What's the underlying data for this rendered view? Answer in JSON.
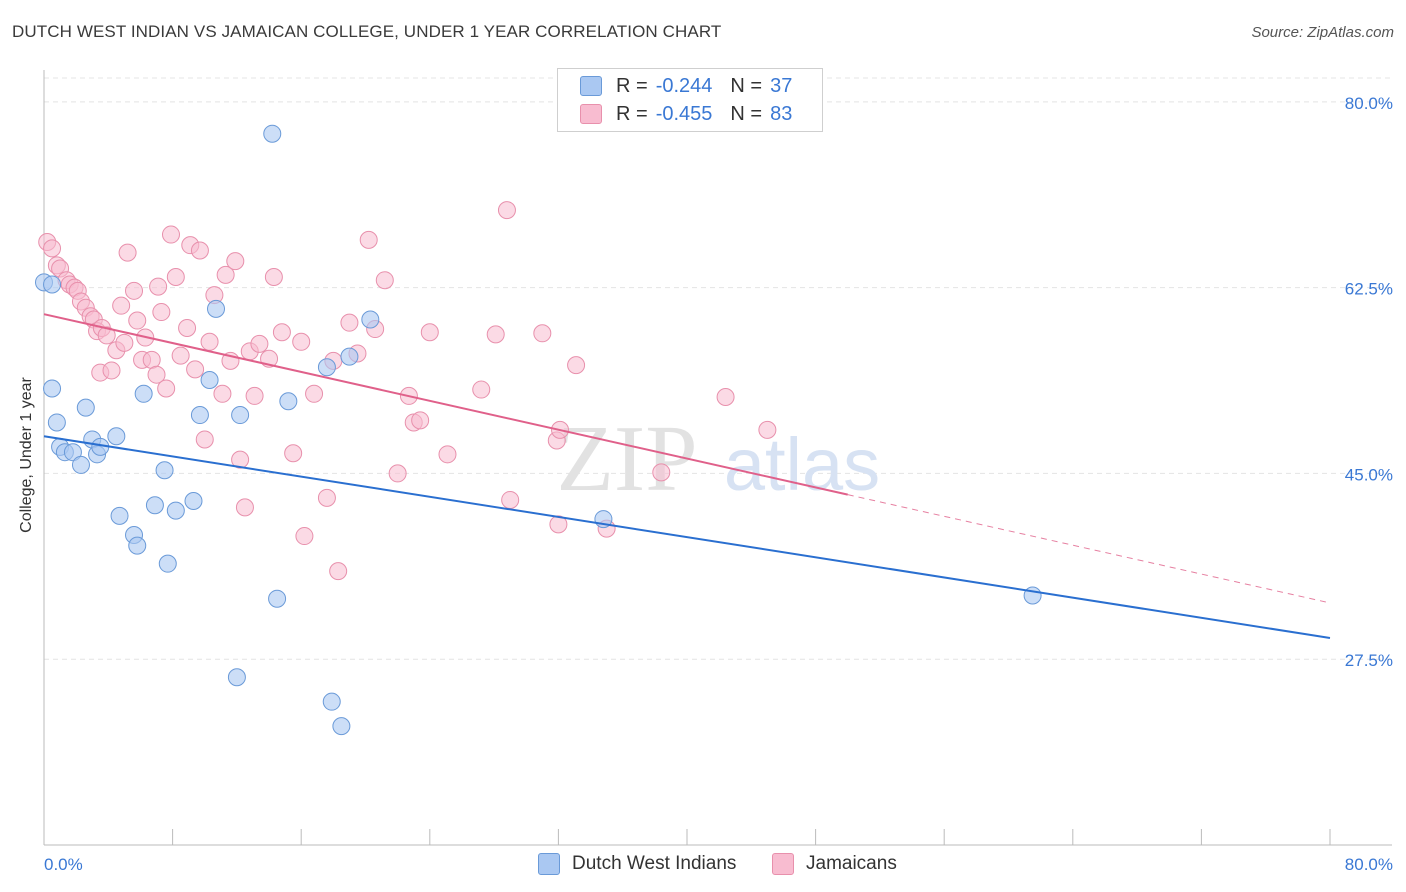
{
  "title": "DUTCH WEST INDIAN VS JAMAICAN COLLEGE, UNDER 1 YEAR CORRELATION CHART",
  "source": "Source: ZipAtlas.com",
  "legend": {
    "r_label": "R =",
    "n_label": "N =",
    "series": [
      {
        "r": "-0.244",
        "n": "37"
      },
      {
        "r": "-0.455",
        "n": "83"
      }
    ]
  },
  "bottom_legend": [
    "Dutch West Indians",
    "Jamaicans"
  ],
  "watermark": {
    "part1": "ZIP",
    "part2": "atlas"
  },
  "colors": {
    "blue_fill": "#aac8f2",
    "blue_stroke": "#6a9ad8",
    "blue_line": "#2a6fd0",
    "pink_fill": "#f8bcd0",
    "pink_stroke": "#e890ac",
    "pink_line": "#e0608a",
    "tick_label": "#3a78d4",
    "grid": "#e4e4e4"
  },
  "chart_data": {
    "type": "scatter",
    "title": "DUTCH WEST INDIAN VS JAMAICAN COLLEGE, UNDER 1 YEAR CORRELATION CHART",
    "xlabel": "",
    "ylabel": "College, Under 1 year",
    "xlim": [
      0,
      80
    ],
    "ylim": [
      10,
      83
    ],
    "x_tick_labels": [
      "0.0%",
      "80.0%"
    ],
    "y_ticks": [
      27.5,
      45.0,
      62.5,
      80.0
    ],
    "y_tick_labels": [
      "27.5%",
      "45.0%",
      "62.5%",
      "80.0%"
    ],
    "grid": true,
    "series": [
      {
        "name": "Dutch West Indians",
        "r": -0.244,
        "n": 37,
        "trend": {
          "x0": 0,
          "y0": 48.5,
          "x1": 80,
          "y1": 29.5,
          "style": "solid"
        },
        "points": [
          [
            0.0,
            63.0
          ],
          [
            0.5,
            53.0
          ],
          [
            0.8,
            49.8
          ],
          [
            1.0,
            47.5
          ],
          [
            1.3,
            47.0
          ],
          [
            1.8,
            47.0
          ],
          [
            2.3,
            45.8
          ],
          [
            2.6,
            51.2
          ],
          [
            3.0,
            48.2
          ],
          [
            3.3,
            46.8
          ],
          [
            3.5,
            47.5
          ],
          [
            4.5,
            48.5
          ],
          [
            4.7,
            41.0
          ],
          [
            5.6,
            39.2
          ],
          [
            5.8,
            38.2
          ],
          [
            6.2,
            52.5
          ],
          [
            6.9,
            42.0
          ],
          [
            7.5,
            45.3
          ],
          [
            7.7,
            36.5
          ],
          [
            8.2,
            41.5
          ],
          [
            9.3,
            42.4
          ],
          [
            9.7,
            50.5
          ],
          [
            10.3,
            53.8
          ],
          [
            10.7,
            60.5
          ],
          [
            12.0,
            25.8
          ],
          [
            12.2,
            50.5
          ],
          [
            14.2,
            77.0
          ],
          [
            14.5,
            33.2
          ],
          [
            15.2,
            51.8
          ],
          [
            17.6,
            55.0
          ],
          [
            17.9,
            23.5
          ],
          [
            18.5,
            21.2
          ],
          [
            19.0,
            56.0
          ],
          [
            20.3,
            59.5
          ],
          [
            34.8,
            40.7
          ],
          [
            61.5,
            33.5
          ],
          [
            0.5,
            62.8
          ]
        ]
      },
      {
        "name": "Jamaicans",
        "r": -0.455,
        "n": 83,
        "trend": {
          "x0": 0,
          "y0": 60.0,
          "x1": 50,
          "y1": 43.0,
          "style": "solid",
          "dash_to": {
            "x": 80,
            "y": 32.8
          }
        },
        "points": [
          [
            0.2,
            66.8
          ],
          [
            0.5,
            66.2
          ],
          [
            0.8,
            64.6
          ],
          [
            1.0,
            64.3
          ],
          [
            1.4,
            63.2
          ],
          [
            1.6,
            62.8
          ],
          [
            1.9,
            62.5
          ],
          [
            2.1,
            62.2
          ],
          [
            2.3,
            61.2
          ],
          [
            2.6,
            60.6
          ],
          [
            2.9,
            59.8
          ],
          [
            3.1,
            59.5
          ],
          [
            3.3,
            58.4
          ],
          [
            3.5,
            54.5
          ],
          [
            3.6,
            58.7
          ],
          [
            3.9,
            58.0
          ],
          [
            4.2,
            54.7
          ],
          [
            4.5,
            56.6
          ],
          [
            4.8,
            60.8
          ],
          [
            5.2,
            65.8
          ],
          [
            5.6,
            62.2
          ],
          [
            5.8,
            59.4
          ],
          [
            6.1,
            55.7
          ],
          [
            6.3,
            57.8
          ],
          [
            6.7,
            55.7
          ],
          [
            7.0,
            54.3
          ],
          [
            7.1,
            62.6
          ],
          [
            7.3,
            60.2
          ],
          [
            7.6,
            53.0
          ],
          [
            7.9,
            67.5
          ],
          [
            8.2,
            63.5
          ],
          [
            8.5,
            56.1
          ],
          [
            8.9,
            58.7
          ],
          [
            9.1,
            66.5
          ],
          [
            9.4,
            54.8
          ],
          [
            9.7,
            66.0
          ],
          [
            10.0,
            48.2
          ],
          [
            10.3,
            57.4
          ],
          [
            10.6,
            61.8
          ],
          [
            11.1,
            52.5
          ],
          [
            11.3,
            63.7
          ],
          [
            11.6,
            55.6
          ],
          [
            11.9,
            65.0
          ],
          [
            12.2,
            46.3
          ],
          [
            12.5,
            41.8
          ],
          [
            12.8,
            56.5
          ],
          [
            13.1,
            52.3
          ],
          [
            13.4,
            57.2
          ],
          [
            14.0,
            55.8
          ],
          [
            14.3,
            63.5
          ],
          [
            14.8,
            58.3
          ],
          [
            15.5,
            46.9
          ],
          [
            16.0,
            57.4
          ],
          [
            16.2,
            39.1
          ],
          [
            16.8,
            52.5
          ],
          [
            17.6,
            42.7
          ],
          [
            18.0,
            55.6
          ],
          [
            18.3,
            35.8
          ],
          [
            19.0,
            59.2
          ],
          [
            19.5,
            56.3
          ],
          [
            20.2,
            67.0
          ],
          [
            20.6,
            58.6
          ],
          [
            21.2,
            63.2
          ],
          [
            22.0,
            45.0
          ],
          [
            22.7,
            52.3
          ],
          [
            23.0,
            49.8
          ],
          [
            23.4,
            50.0
          ],
          [
            24.0,
            58.3
          ],
          [
            25.1,
            46.8
          ],
          [
            27.2,
            52.9
          ],
          [
            28.1,
            58.1
          ],
          [
            28.8,
            69.8
          ],
          [
            31.0,
            58.2
          ],
          [
            31.9,
            48.1
          ],
          [
            32.1,
            49.1
          ],
          [
            33.1,
            55.2
          ],
          [
            35.0,
            39.8
          ],
          [
            38.4,
            45.1
          ],
          [
            42.4,
            52.2
          ],
          [
            45.0,
            49.1
          ],
          [
            32.0,
            40.2
          ],
          [
            29.0,
            42.5
          ],
          [
            5.0,
            57.3
          ]
        ]
      }
    ]
  }
}
